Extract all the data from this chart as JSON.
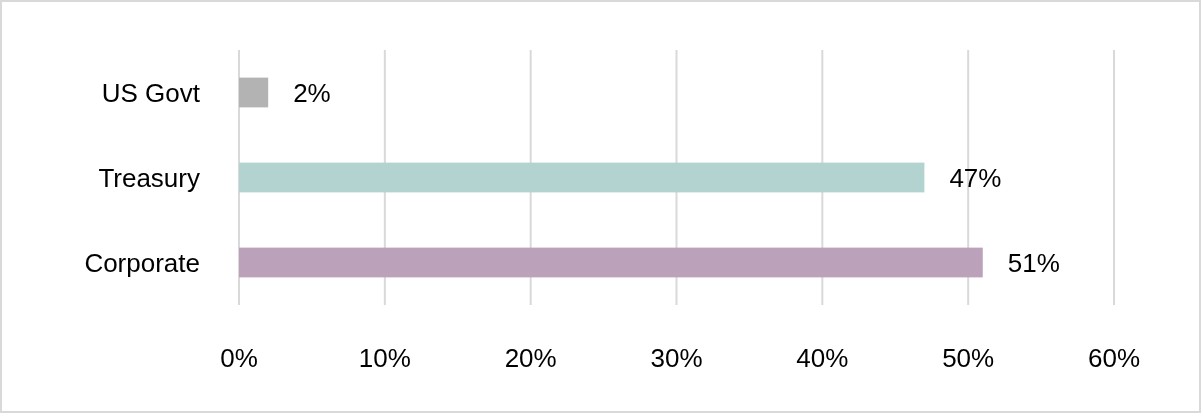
{
  "chart_data": {
    "type": "bar",
    "orientation": "horizontal",
    "categories": [
      "US Govt",
      "Treasury",
      "Corporate"
    ],
    "values": [
      2,
      47,
      51
    ],
    "colors": [
      "#b3b3b3",
      "#b3d3d0",
      "#bba1ba"
    ],
    "value_labels": [
      "2%",
      "47%",
      "51%"
    ],
    "xlim": [
      0,
      60
    ],
    "xticks": [
      {
        "value": 0,
        "label": "0%"
      },
      {
        "value": 10,
        "label": "10%"
      },
      {
        "value": 20,
        "label": "20%"
      },
      {
        "value": 30,
        "label": "30%"
      },
      {
        "value": 40,
        "label": "40%"
      },
      {
        "value": 50,
        "label": "50%"
      },
      {
        "value": 60,
        "label": "60%"
      }
    ],
    "grid": "x"
  }
}
